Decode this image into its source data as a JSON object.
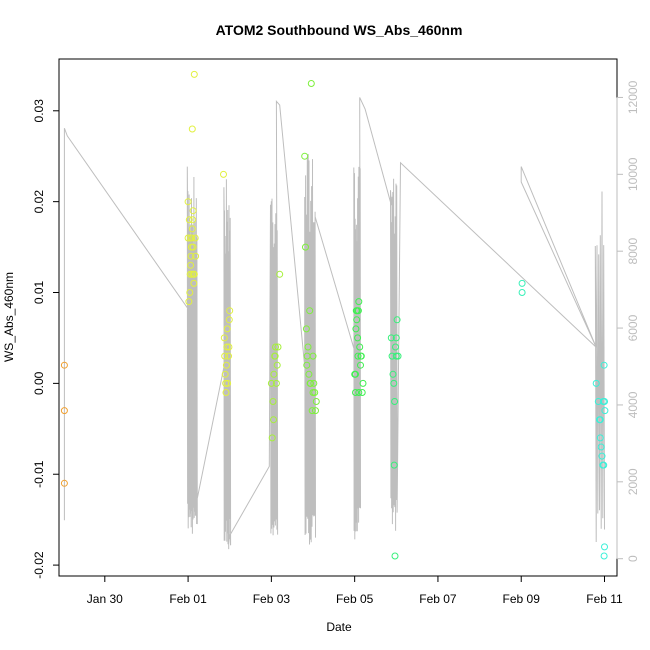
{
  "chart_data": {
    "type": "scatter",
    "title": "ATOM2 Southbound WS_Abs_460nm",
    "xlabel": "Date",
    "ylabel": "WS_Abs_460nm",
    "x_ticks": [
      {
        "day": 1,
        "label": "Jan 30"
      },
      {
        "day": 3,
        "label": "Feb 01"
      },
      {
        "day": 5,
        "label": "Feb 03"
      },
      {
        "day": 7,
        "label": "Feb 05"
      },
      {
        "day": 9,
        "label": "Feb 07"
      },
      {
        "day": 11,
        "label": "Feb 09"
      },
      {
        "day": 13,
        "label": "Feb 11"
      }
    ],
    "xlim": [
      -0.1,
      13.3
    ],
    "y_ticks": [
      -0.02,
      -0.01,
      0.0,
      0.01,
      0.02,
      0.03
    ],
    "y_tick_labels": [
      "-0.02",
      "-0.01",
      "0.00",
      "0.01",
      "0.02",
      "0.03"
    ],
    "ylim": [
      -0.0212,
      0.0357
    ],
    "y2_ticks": [
      0,
      2000,
      4000,
      6000,
      8000,
      10000,
      12000
    ],
    "y2_tick_labels": [
      "0",
      "2000",
      "4000",
      "6000",
      "8000",
      "10000",
      "12000"
    ],
    "y2lim": [
      -450,
      13000
    ],
    "grid": false,
    "line_color": "#bebebe",
    "series": [
      {
        "color": "#f0a030",
        "points": [
          [
            0.03,
            0.002
          ],
          [
            0.03,
            -0.003
          ],
          [
            0.03,
            -0.011
          ]
        ]
      },
      {
        "color": "#e2f040",
        "points": [
          [
            3.0,
            0.02
          ],
          [
            3.02,
            0.009
          ],
          [
            3.04,
            0.01
          ],
          [
            3.05,
            0.012
          ],
          [
            3.06,
            0.013
          ],
          [
            3.07,
            0.014
          ],
          [
            3.08,
            0.015
          ],
          [
            3.09,
            0.016
          ],
          [
            3.1,
            0.017
          ],
          [
            3.11,
            0.018
          ],
          [
            3.12,
            0.019
          ],
          [
            3.13,
            0.012
          ],
          [
            3.14,
            0.011
          ],
          [
            3.1,
            0.028
          ],
          [
            3.15,
            0.034
          ],
          [
            3.0,
            0.016
          ],
          [
            3.03,
            0.018
          ],
          [
            3.06,
            0.016
          ],
          [
            3.09,
            0.012
          ],
          [
            3.12,
            0.015
          ],
          [
            3.15,
            0.012
          ],
          [
            3.17,
            0.016
          ],
          [
            3.18,
            0.014
          ],
          [
            3.85,
            0.023
          ],
          [
            3.87,
            0.005
          ],
          [
            3.88,
            0.003
          ],
          [
            3.89,
            0.001
          ],
          [
            3.9,
            0.0
          ],
          [
            3.91,
            -0.001
          ],
          [
            3.92,
            0.002
          ],
          [
            3.93,
            0.004
          ],
          [
            3.94,
            0.006
          ],
          [
            3.95,
            0.0
          ],
          [
            3.97,
            0.003
          ],
          [
            3.98,
            0.004
          ],
          [
            3.99,
            0.007
          ],
          [
            4.0,
            0.008
          ]
        ]
      },
      {
        "color": "#a6f03a",
        "points": [
          [
            5.0,
            0.0
          ],
          [
            5.02,
            -0.006
          ],
          [
            5.04,
            -0.002
          ],
          [
            5.06,
            0.001
          ],
          [
            5.08,
            0.003
          ],
          [
            5.1,
            0.004
          ],
          [
            5.12,
            0.0
          ],
          [
            5.14,
            0.002
          ],
          [
            5.16,
            0.004
          ],
          [
            5.2,
            0.012
          ],
          [
            5.05,
            -0.004
          ],
          [
            5.09,
            0.003
          ]
        ]
      },
      {
        "color": "#7ef03c",
        "points": [
          [
            5.8,
            0.025
          ],
          [
            5.82,
            0.015
          ],
          [
            5.84,
            0.006
          ],
          [
            5.86,
            0.003
          ],
          [
            5.88,
            0.004
          ],
          [
            5.9,
            0.001
          ],
          [
            5.92,
            0.008
          ],
          [
            5.94,
            0.0
          ],
          [
            5.96,
            0.033
          ],
          [
            5.98,
            -0.003
          ],
          [
            6.0,
            0.003
          ],
          [
            6.02,
            0.0
          ],
          [
            6.04,
            -0.001
          ],
          [
            6.06,
            -0.003
          ],
          [
            6.08,
            -0.002
          ],
          [
            5.85,
            0.002
          ],
          [
            5.93,
            0.0
          ],
          [
            6.0,
            -0.001
          ]
        ]
      },
      {
        "color": "#3ef050",
        "points": [
          [
            7.0,
            0.001
          ],
          [
            7.02,
            -0.001
          ],
          [
            7.04,
            0.008
          ],
          [
            7.05,
            0.007
          ],
          [
            7.06,
            0.008
          ],
          [
            7.07,
            0.005
          ],
          [
            7.08,
            0.003
          ],
          [
            7.1,
            0.009
          ],
          [
            7.12,
            0.004
          ],
          [
            7.14,
            0.002
          ],
          [
            7.16,
            0.003
          ],
          [
            7.18,
            -0.001
          ],
          [
            7.2,
            0.0
          ],
          [
            7.03,
            0.006
          ],
          [
            7.09,
            0.008
          ],
          [
            7.15,
            0.003
          ],
          [
            7.02,
            0.001
          ],
          [
            7.1,
            -0.001
          ]
        ]
      },
      {
        "color": "#36f07a",
        "points": [
          [
            7.88,
            0.005
          ],
          [
            7.9,
            0.003
          ],
          [
            7.92,
            0.001
          ],
          [
            7.94,
            0.0
          ],
          [
            7.96,
            -0.002
          ],
          [
            7.98,
            0.004
          ],
          [
            8.0,
            0.005
          ],
          [
            8.02,
            0.007
          ],
          [
            8.04,
            0.003
          ],
          [
            7.95,
            -0.009
          ],
          [
            8.0,
            0.003
          ],
          [
            7.97,
            -0.019
          ]
        ]
      },
      {
        "color": "#38f0b8",
        "points": [
          [
            11.02,
            0.011
          ],
          [
            11.02,
            0.01
          ]
        ]
      },
      {
        "color": "#3af0d8",
        "points": [
          [
            12.8,
            0.0
          ],
          [
            12.85,
            -0.002
          ],
          [
            12.88,
            -0.004
          ],
          [
            12.9,
            -0.006
          ],
          [
            12.92,
            -0.007
          ],
          [
            12.94,
            -0.008
          ],
          [
            12.96,
            -0.009
          ],
          [
            12.98,
            -0.009
          ],
          [
            13.0,
            -0.002
          ],
          [
            12.99,
            0.002
          ],
          [
            13.01,
            -0.003
          ],
          [
            12.97,
            -0.002
          ],
          [
            12.9,
            -0.004
          ],
          [
            13.0,
            -0.018
          ],
          [
            12.99,
            -0.019
          ]
        ]
      }
    ]
  }
}
